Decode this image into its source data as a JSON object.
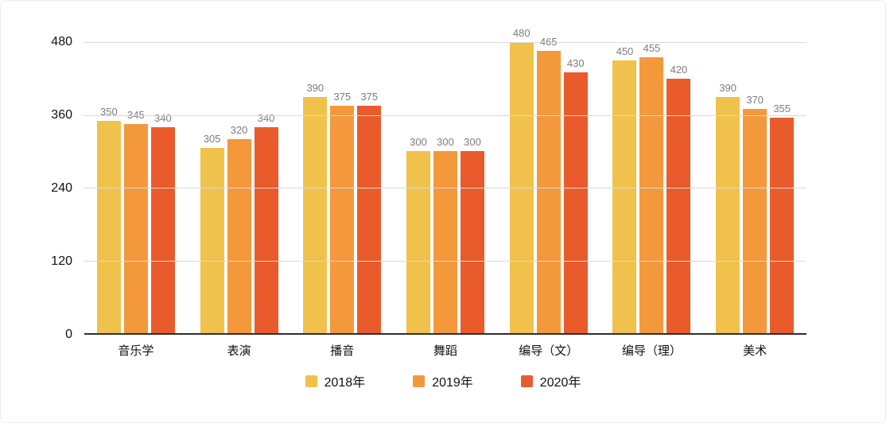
{
  "chart_data": {
    "type": "bar",
    "title": "",
    "xlabel": "",
    "ylabel": "",
    "categories": [
      "音乐学",
      "表演",
      "播音",
      "舞蹈",
      "编导（文）",
      "编导（理）",
      "美术"
    ],
    "series": [
      {
        "name": "2018年",
        "color": "#F0C24B",
        "values": [
          350,
          305,
          390,
          300,
          480,
          450,
          390
        ]
      },
      {
        "name": "2019年",
        "color": "#F4983C",
        "values": [
          345,
          320,
          375,
          300,
          465,
          455,
          370
        ]
      },
      {
        "name": "2020年",
        "color": "#EA5B2C",
        "values": [
          340,
          340,
          375,
          300,
          430,
          420,
          355
        ]
      }
    ],
    "ylim": [
      0,
      480
    ],
    "yticks": [
      0,
      120,
      240,
      360,
      480
    ],
    "grid": true,
    "legend_position": "bottom",
    "annotations": "value labels shown above each bar",
    "colors": {
      "gridline": "#dadada",
      "baseline": "#2e2e2e",
      "value_label": "#7d7d7d",
      "axis_label": "#111111"
    }
  }
}
